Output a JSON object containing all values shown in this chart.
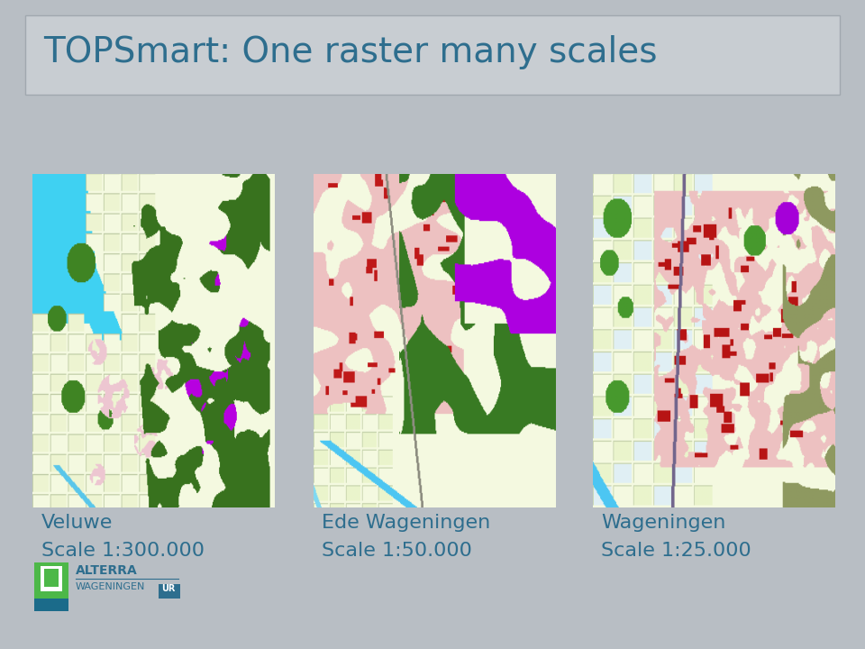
{
  "title": "TOPSmart: One raster many scales",
  "title_color": "#2E6E8E",
  "title_fontsize": 28,
  "background_color": "#B8BEC4",
  "maps": [
    {
      "label_line1": "Veluwe",
      "label_line2": "Scale 1:300.000"
    },
    {
      "label_line1": "Ede Wageningen",
      "label_line2": "Scale 1:50.000"
    },
    {
      "label_line1": "Wageningen",
      "label_line2": "Scale 1:25.000"
    }
  ],
  "label_color": "#2E6E8E",
  "label_fontsize": 16,
  "title_bar_color": "#C8CDD2",
  "title_bar_edge": "#A0A8AF"
}
